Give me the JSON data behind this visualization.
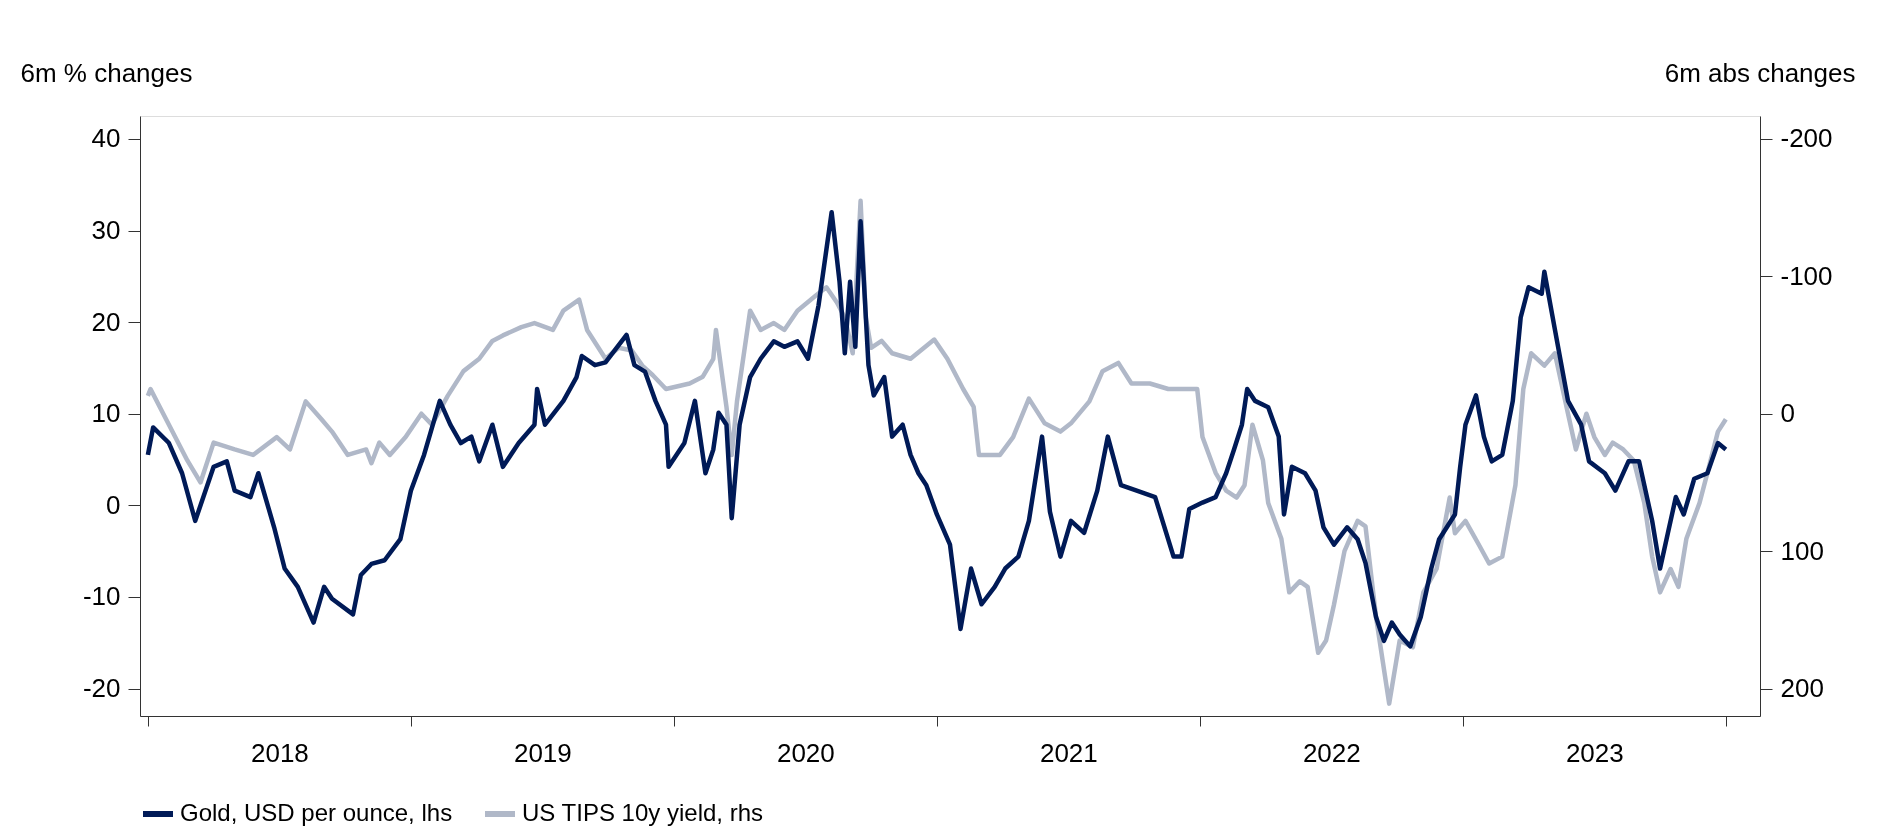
{
  "chart_data": {
    "type": "line",
    "ylabel": "6m % changes",
    "y2label": "6m abs changes",
    "xlim": [
      2017.97,
      2024.13
    ],
    "xticks": [
      {
        "value": 2018,
        "label": null
      },
      {
        "value": 2018.5,
        "label": "2018"
      },
      {
        "value": 2019,
        "label": null
      },
      {
        "value": 2019.5,
        "label": "2019"
      },
      {
        "value": 2020,
        "label": null
      },
      {
        "value": 2020.5,
        "label": "2020"
      },
      {
        "value": 2021,
        "label": null
      },
      {
        "value": 2021.5,
        "label": "2021"
      },
      {
        "value": 2022,
        "label": null
      },
      {
        "value": 2022.5,
        "label": "2022"
      },
      {
        "value": 2023,
        "label": null
      },
      {
        "value": 2023.5,
        "label": "2023"
      },
      {
        "value": 2024,
        "label": null
      }
    ],
    "ylim": [
      -23,
      42.5
    ],
    "yticks": [
      -20,
      -10,
      0,
      10,
      20,
      30,
      40
    ],
    "y2lim": [
      220,
      -216.7
    ],
    "y2ticks": [
      200,
      100,
      0,
      -100,
      -200
    ],
    "grid": false,
    "legend": "bottom left",
    "line_style": "solid",
    "marker": "none",
    "series": [
      {
        "name": "Gold, USD per ounce, lhs",
        "color": "#001a57",
        "x": [
          2018.0,
          2018.02,
          2018.08,
          2018.13,
          2018.18,
          2018.25,
          2018.3,
          2018.33,
          2018.39,
          2018.42,
          2018.48,
          2018.52,
          2018.57,
          2018.63,
          2018.67,
          2018.7,
          2018.78,
          2018.81,
          2018.85,
          2018.9,
          2018.96,
          2019.0,
          2019.05,
          2019.11,
          2019.15,
          2019.19,
          2019.23,
          2019.26,
          2019.31,
          2019.35,
          2019.41,
          2019.47,
          2019.48,
          2019.51,
          2019.58,
          2019.63,
          2019.65,
          2019.7,
          2019.74,
          2019.82,
          2019.85,
          2019.89,
          2019.93,
          2019.97,
          2019.98,
          2020.04,
          2020.08,
          2020.12,
          2020.15,
          2020.17,
          2020.2,
          2020.22,
          2020.25,
          2020.29,
          2020.33,
          2020.38,
          2020.42,
          2020.47,
          2020.51,
          2020.55,
          2020.6,
          2020.63,
          2020.65,
          2020.67,
          2020.69,
          2020.71,
          2020.74,
          2020.76,
          2020.8,
          2020.83,
          2020.87,
          2020.9,
          2020.93,
          2020.96,
          2021.0,
          2021.05,
          2021.09,
          2021.13,
          2021.17,
          2021.22,
          2021.26,
          2021.31,
          2021.35,
          2021.4,
          2021.43,
          2021.47,
          2021.51,
          2021.56,
          2021.61,
          2021.65,
          2021.7,
          2021.76,
          2021.83,
          2021.9,
          2021.93,
          2021.96,
          2022.01,
          2022.06,
          2022.1,
          2022.13,
          2022.16,
          2022.18,
          2022.21,
          2022.26,
          2022.3,
          2022.32,
          2022.35,
          2022.4,
          2022.44,
          2022.47,
          2022.51,
          2022.56,
          2022.6,
          2022.63,
          2022.67,
          2022.7,
          2022.73,
          2022.76,
          2022.8,
          2022.84,
          2022.88,
          2022.91,
          2022.97,
          2022.99,
          2023.01,
          2023.05,
          2023.08,
          2023.11,
          2023.15,
          2023.19,
          2023.22,
          2023.25,
          2023.3,
          2023.31,
          2023.35,
          2023.4,
          2023.45,
          2023.48,
          2023.54,
          2023.58,
          2023.63,
          2023.67,
          2023.72,
          2023.75,
          2023.78,
          2023.81,
          2023.84,
          2023.88,
          2023.93,
          2023.97,
          2024.0
        ],
        "values": [
          5.5,
          8.5,
          6.8,
          3.5,
          -1.7,
          4.2,
          4.8,
          1.6,
          0.9,
          3.5,
          -2.4,
          -6.9,
          -8.9,
          -12.8,
          -8.9,
          -10.2,
          -11.9,
          -7.6,
          -6.4,
          -6.0,
          -3.7,
          1.6,
          5.5,
          11.4,
          8.8,
          6.8,
          7.5,
          4.8,
          8.8,
          4.2,
          6.8,
          8.8,
          12.7,
          8.8,
          11.4,
          14.0,
          16.3,
          15.3,
          15.6,
          18.6,
          15.3,
          14.6,
          11.4,
          8.8,
          4.2,
          6.8,
          11.4,
          3.5,
          6.1,
          10.1,
          8.8,
          -1.4,
          8.8,
          14.0,
          16.0,
          17.9,
          17.3,
          17.9,
          16.0,
          21.8,
          32.0,
          24.4,
          16.6,
          24.4,
          17.3,
          31.0,
          15.3,
          12.0,
          14.0,
          7.5,
          8.8,
          5.5,
          3.5,
          2.2,
          -1.0,
          -4.3,
          -13.5,
          -6.9,
          -10.8,
          -8.9,
          -6.9,
          -5.6,
          -1.7,
          7.5,
          -0.7,
          -5.6,
          -1.7,
          -3.0,
          1.6,
          7.5,
          2.2,
          1.6,
          0.9,
          -5.6,
          -5.6,
          -0.4,
          0.3,
          0.9,
          3.5,
          6.1,
          8.8,
          12.7,
          11.4,
          10.7,
          7.5,
          -1.0,
          4.2,
          3.5,
          1.6,
          -2.4,
          -4.3,
          -2.4,
          -3.7,
          -6.3,
          -12.2,
          -14.8,
          -12.8,
          -14.1,
          -15.4,
          -12.2,
          -6.9,
          -3.7,
          -1.0,
          4.2,
          8.8,
          12.0,
          7.5,
          4.8,
          5.5,
          11.4,
          20.5,
          23.8,
          23.1,
          25.5,
          19.2,
          11.4,
          8.8,
          4.8,
          3.5,
          1.6,
          4.8,
          4.8,
          -1.7,
          -6.9,
          -3.0,
          0.9,
          -1.0,
          2.9,
          3.5,
          6.8,
          6.1
        ]
      },
      {
        "name": "US TIPS 10y yield, rhs",
        "color": "#b0b8c8",
        "axis": "y2",
        "x": [
          2018.0,
          2018.01,
          2018.08,
          2018.15,
          2018.2,
          2018.25,
          2018.33,
          2018.4,
          2018.49,
          2018.54,
          2018.6,
          2018.66,
          2018.7,
          2018.76,
          2018.83,
          2018.85,
          2018.88,
          2018.92,
          2018.98,
          2019.04,
          2019.08,
          2019.14,
          2019.2,
          2019.26,
          2019.31,
          2019.35,
          2019.42,
          2019.47,
          2019.54,
          2019.58,
          2019.64,
          2019.67,
          2019.74,
          2019.79,
          2019.84,
          2019.88,
          2019.92,
          2019.97,
          2020.06,
          2020.11,
          2020.15,
          2020.16,
          2020.2,
          2020.22,
          2020.24,
          2020.29,
          2020.33,
          2020.38,
          2020.42,
          2020.47,
          2020.54,
          2020.58,
          2020.62,
          2020.65,
          2020.68,
          2020.71,
          2020.73,
          2020.75,
          2020.79,
          2020.83,
          2020.9,
          2020.99,
          2021.04,
          2021.1,
          2021.14,
          2021.16,
          2021.24,
          2021.29,
          2021.35,
          2021.41,
          2021.47,
          2021.51,
          2021.58,
          2021.63,
          2021.69,
          2021.74,
          2021.81,
          2021.88,
          2021.95,
          2021.99,
          2022.01,
          2022.06,
          2022.1,
          2022.14,
          2022.17,
          2022.2,
          2022.24,
          2022.26,
          2022.31,
          2022.34,
          2022.38,
          2022.41,
          2022.45,
          2022.48,
          2022.51,
          2022.55,
          2022.6,
          2022.63,
          2022.67,
          2022.72,
          2022.76,
          2022.81,
          2022.85,
          2022.9,
          2022.95,
          2022.97,
          2023.01,
          2023.06,
          2023.1,
          2023.15,
          2023.2,
          2023.23,
          2023.26,
          2023.31,
          2023.35,
          2023.4,
          2023.43,
          2023.47,
          2023.5,
          2023.54,
          2023.57,
          2023.61,
          2023.65,
          2023.69,
          2023.72,
          2023.75,
          2023.79,
          2023.82,
          2023.85,
          2023.9,
          2023.93,
          2023.97,
          2024.0
        ],
        "values": [
          -13,
          -18,
          8,
          34,
          50,
          21,
          26,
          30,
          17,
          26,
          -9,
          4,
          13,
          30,
          26,
          36,
          21,
          30,
          17,
          0,
          8,
          -13,
          -31,
          -40,
          -53,
          -57,
          -63,
          -66,
          -61,
          -75,
          -83,
          -61,
          -40,
          -48,
          -46,
          -35,
          -28,
          -18,
          -22,
          -27,
          -40,
          -61,
          -5,
          30,
          -9,
          -75,
          -61,
          -66,
          -61,
          -75,
          -86,
          -92,
          -81,
          -70,
          -44,
          -155,
          -70,
          -48,
          -53,
          -44,
          -40,
          -54,
          -40,
          -18,
          -5,
          30,
          30,
          17,
          -11,
          7,
          13,
          7,
          -9,
          -31,
          -37,
          -22,
          -22,
          -18,
          -18,
          -18,
          17,
          43,
          56,
          61,
          52,
          8,
          34,
          65,
          91,
          130,
          122,
          126,
          174,
          165,
          139,
          100,
          78,
          82,
          148,
          211,
          165,
          170,
          130,
          113,
          61,
          87,
          78,
          95,
          109,
          104,
          52,
          -18,
          -44,
          -35,
          -44,
          0,
          26,
          0,
          17,
          30,
          21,
          26,
          34,
          65,
          104,
          130,
          113,
          126,
          91,
          65,
          43,
          13,
          4
        ]
      }
    ]
  }
}
